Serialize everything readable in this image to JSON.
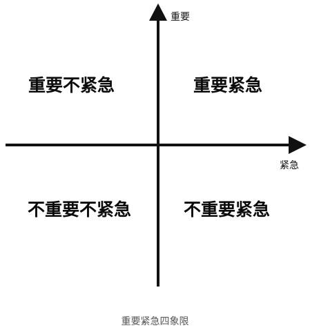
{
  "axes": {
    "y_label": "重要",
    "x_label": "紧急"
  },
  "quadrants": {
    "top_left": "重要不紧急",
    "top_right": "重要紧急",
    "bottom_left": "不重要不紧急",
    "bottom_right": "不重要紧急"
  },
  "caption": "重要紧急四象限",
  "colors": {
    "axis": "#111111",
    "text": "#0b0b0b",
    "caption": "#555555",
    "background": "#ffffff"
  }
}
